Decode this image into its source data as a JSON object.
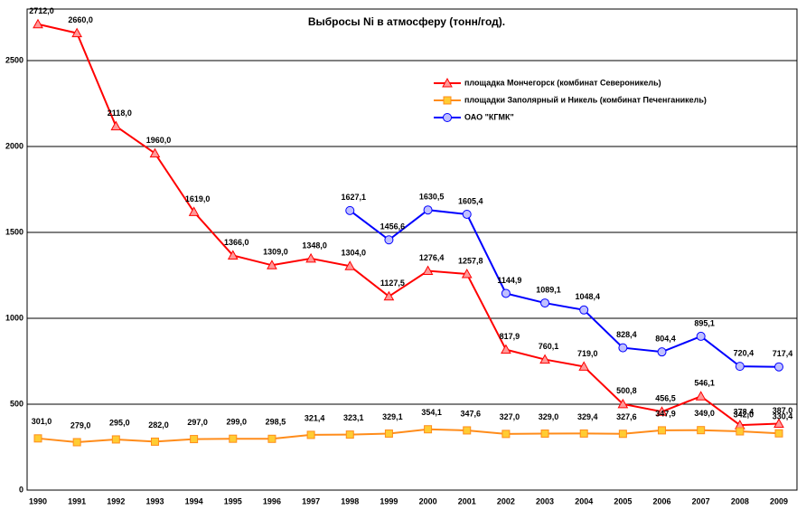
{
  "chart_data": {
    "type": "line",
    "title": "Выбросы Ni в атмосферу (тонн/год).",
    "categories": [
      "1990",
      "1991",
      "1992",
      "1993",
      "1994",
      "1995",
      "1996",
      "1997",
      "1998",
      "1999",
      "2000",
      "2001",
      "2002",
      "2003",
      "2004",
      "2005",
      "2006",
      "2007",
      "2008",
      "2009"
    ],
    "ylim": [
      0,
      2800
    ],
    "yticks": [
      0,
      500,
      1000,
      1500,
      2000,
      2500
    ],
    "grid": true,
    "series": [
      {
        "name": "площадка Мончегорск (комбинат Североникель)",
        "color": "#ff0000",
        "marker": "triangle",
        "values": [
          2712.0,
          2660.0,
          2118.0,
          1960.0,
          1619.0,
          1366.0,
          1309.0,
          1348.0,
          1304.0,
          1127.5,
          1276.4,
          1257.8,
          817.9,
          760.1,
          719.0,
          500.8,
          456.5,
          546.1,
          378.4,
          387.0
        ],
        "value_labels": [
          "2712,0",
          "2660,0",
          "2118,0",
          "1960,0",
          "1619,0",
          "1366,0",
          "1309,0",
          "1348,0",
          "1304,0",
          "1127,5",
          "1276,4",
          "1257,8",
          "817,9",
          "760,1",
          "719,0",
          "500,8",
          "456,5",
          "546,1",
          "378,4",
          "387,0"
        ]
      },
      {
        "name": "площадки Заполярный и Никель (комбинат Печенганикель)",
        "color": "#ff8c1a",
        "marker": "square",
        "values": [
          301.0,
          279.0,
          295.0,
          282.0,
          297.0,
          299.0,
          298.5,
          321.4,
          323.1,
          329.1,
          354.1,
          347.6,
          327.0,
          329.0,
          329.4,
          327.6,
          347.9,
          349.0,
          342.0,
          330.4
        ],
        "value_labels": [
          "301,0",
          "279,0",
          "295,0",
          "282,0",
          "297,0",
          "299,0",
          "298,5",
          "321,4",
          "323,1",
          "329,1",
          "354,1",
          "347,6",
          "327,0",
          "329,0",
          "329,4",
          "327,6",
          "347,9",
          "349,0",
          "342,0",
          "330,4"
        ]
      },
      {
        "name": "ОАО \"КГМК\"",
        "color": "#0000ff",
        "marker": "circle",
        "values": [
          null,
          null,
          null,
          null,
          null,
          null,
          null,
          null,
          1627.1,
          1456.6,
          1630.5,
          1605.4,
          1144.9,
          1089.1,
          1048.4,
          828.4,
          804.4,
          895.1,
          720.4,
          717.4
        ],
        "value_labels": [
          null,
          null,
          null,
          null,
          null,
          null,
          null,
          null,
          "1627,1",
          "1456,6",
          "1630,5",
          "1605,4",
          "1144,9",
          "1089,1",
          "1048,4",
          "828,4",
          "804,4",
          "895,1",
          "720,4",
          "717,4"
        ]
      }
    ]
  }
}
